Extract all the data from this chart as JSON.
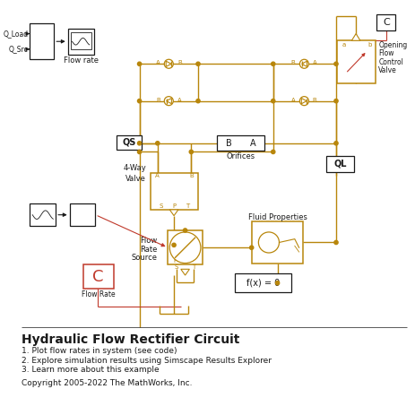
{
  "title": "Hydraulic Flow Rectifier Circuit",
  "bullets": [
    "1. Plot flow rates in system (see code)",
    "2. Explore simulation results using Simscape Results Explorer",
    "3. Learn more about this example"
  ],
  "copyright": "Copyright 2005-2022 The MathWorks, Inc.",
  "gold": "#B8860B",
  "red": "#C0392B",
  "black": "#1a1a1a",
  "bg": "#FFFFFF",
  "fig_w": 4.63,
  "fig_h": 4.63,
  "dpi": 100
}
